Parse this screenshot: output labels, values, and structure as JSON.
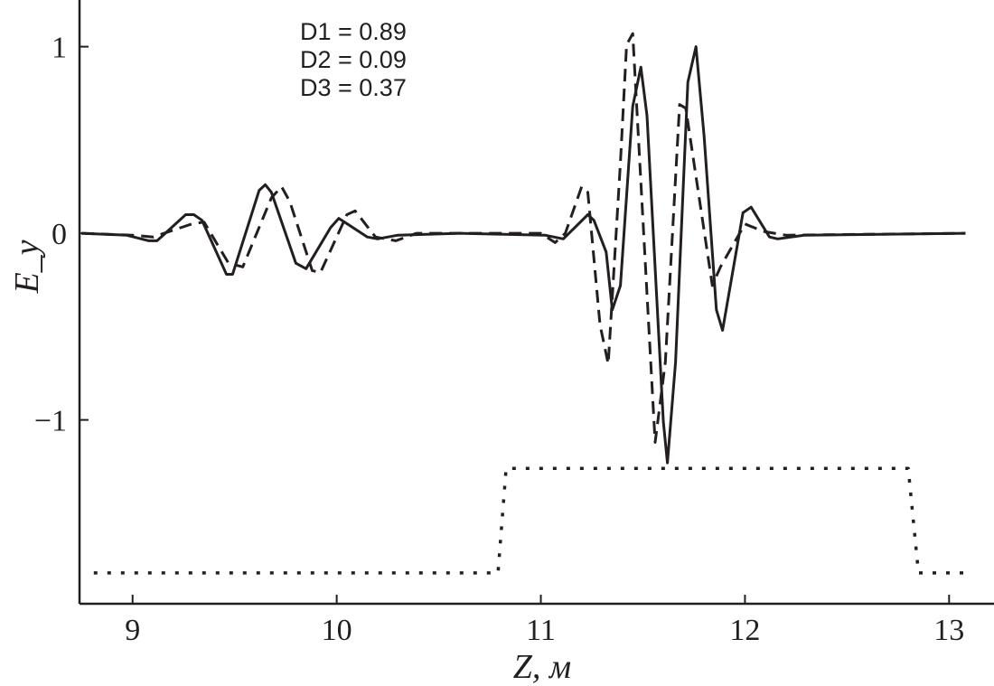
{
  "chart_data": {
    "type": "line",
    "xlabel": "Z, м",
    "ylabel": "E_y",
    "xlim": [
      8.74,
      13.22
    ],
    "ylim": [
      -1.985,
      1.25
    ],
    "x_ticks": [
      9,
      10,
      11,
      12,
      13
    ],
    "y_ticks": [
      1,
      0,
      -1
    ],
    "x_tick_labels": [
      "9",
      "10",
      "11",
      "12",
      "13"
    ],
    "y_tick_labels": [
      "1",
      "0",
      "−1"
    ],
    "grid": false,
    "annotations": [
      "D1 = 0.89",
      "D2 = 0.09",
      "D3 = 0.37"
    ],
    "colors": {
      "line": "#231f20"
    },
    "series": [
      {
        "style": "solid",
        "points": [
          [
            8.75,
            0
          ],
          [
            8.97,
            -0.01
          ],
          [
            9.08,
            -0.04
          ],
          [
            9.12,
            -0.04
          ],
          [
            9.26,
            0.1
          ],
          [
            9.3,
            0.1
          ],
          [
            9.34,
            0.07
          ],
          [
            9.46,
            -0.22
          ],
          [
            9.49,
            -0.22
          ],
          [
            9.62,
            0.23
          ],
          [
            9.65,
            0.26
          ],
          [
            9.68,
            0.22
          ],
          [
            9.8,
            -0.16
          ],
          [
            9.85,
            -0.19
          ],
          [
            9.97,
            0.03
          ],
          [
            10.01,
            0.08
          ],
          [
            10.15,
            -0.02
          ],
          [
            10.2,
            -0.03
          ],
          [
            10.3,
            -0.01
          ],
          [
            10.6,
            0
          ],
          [
            11.02,
            -0.01
          ],
          [
            11.11,
            -0.03
          ],
          [
            11.23,
            0.1
          ],
          [
            11.26,
            0.07
          ],
          [
            11.32,
            -0.1
          ],
          [
            11.35,
            -0.41
          ],
          [
            11.39,
            -0.28
          ],
          [
            11.45,
            0.68
          ],
          [
            11.49,
            0.89
          ],
          [
            11.52,
            0.63
          ],
          [
            11.6,
            -1.01
          ],
          [
            11.62,
            -1.23
          ],
          [
            11.66,
            -0.69
          ],
          [
            11.72,
            0.81
          ],
          [
            11.76,
            1.0
          ],
          [
            11.8,
            0.52
          ],
          [
            11.86,
            -0.41
          ],
          [
            11.89,
            -0.52
          ],
          [
            11.99,
            0.11
          ],
          [
            12.03,
            0.14
          ],
          [
            12.12,
            -0.02
          ],
          [
            12.16,
            -0.03
          ],
          [
            12.29,
            -0.01
          ],
          [
            13.08,
            0
          ]
        ]
      },
      {
        "style": "dashed",
        "points": [
          [
            8.75,
            0
          ],
          [
            9.0,
            -0.01
          ],
          [
            9.1,
            -0.02
          ],
          [
            9.29,
            0.05
          ],
          [
            9.35,
            0.06
          ],
          [
            9.47,
            -0.16
          ],
          [
            9.54,
            -0.18
          ],
          [
            9.68,
            0.19
          ],
          [
            9.73,
            0.25
          ],
          [
            9.77,
            0.17
          ],
          [
            9.88,
            -0.2
          ],
          [
            9.92,
            -0.21
          ],
          [
            10.05,
            0.1
          ],
          [
            10.09,
            0.12
          ],
          [
            10.19,
            -0.02
          ],
          [
            10.29,
            -0.04
          ],
          [
            10.39,
            0
          ],
          [
            11.0,
            0
          ],
          [
            11.07,
            -0.05
          ],
          [
            11.12,
            0
          ],
          [
            11.2,
            0.25
          ],
          [
            11.23,
            0.22
          ],
          [
            11.29,
            -0.49
          ],
          [
            11.33,
            -0.7
          ],
          [
            11.39,
            0.38
          ],
          [
            11.42,
            1.01
          ],
          [
            11.45,
            1.07
          ],
          [
            11.56,
            -1.12
          ],
          [
            11.61,
            -0.69
          ],
          [
            11.68,
            0.69
          ],
          [
            11.71,
            0.67
          ],
          [
            11.84,
            -0.28
          ],
          [
            11.88,
            -0.18
          ],
          [
            12.0,
            0.05
          ],
          [
            12.09,
            0.01
          ],
          [
            12.2,
            -0.01
          ],
          [
            13.08,
            0
          ]
        ]
      },
      {
        "style": "dotted",
        "points": [
          [
            8.81,
            -1.82
          ],
          [
            10.79,
            -1.82
          ],
          [
            10.83,
            -1.26
          ],
          [
            12.8,
            -1.26
          ],
          [
            12.85,
            -1.82
          ],
          [
            13.1,
            -1.82
          ]
        ]
      }
    ]
  }
}
